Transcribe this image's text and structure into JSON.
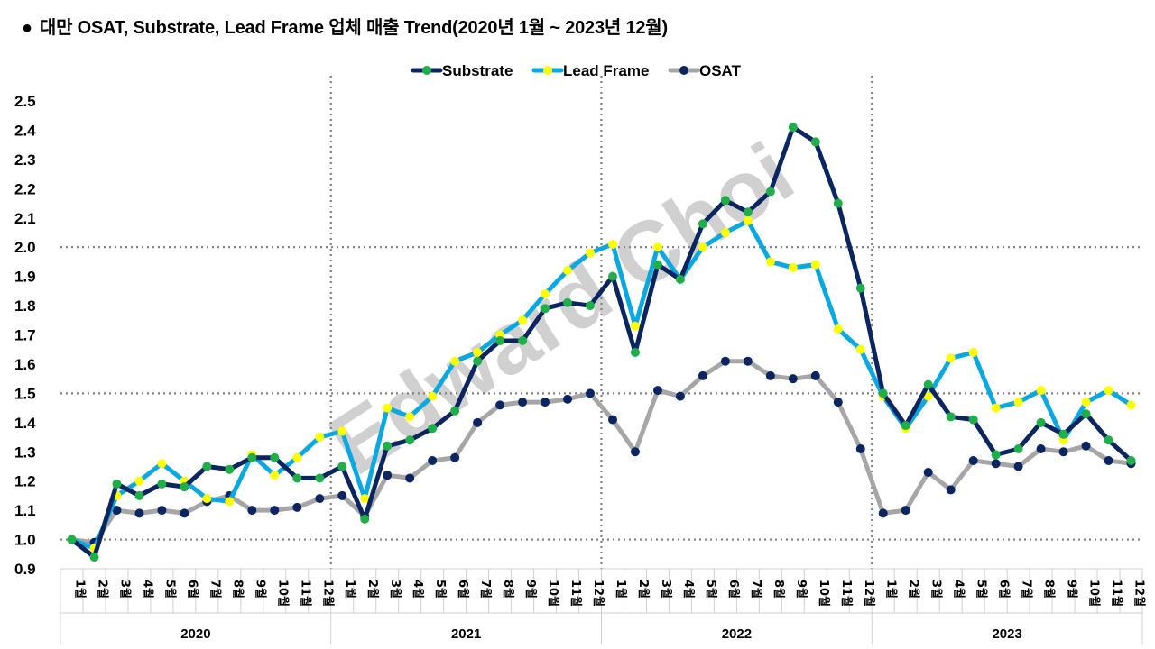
{
  "title": "대만 OSAT, Substrate, Lead Frame 업체 매출 Trend(2020년 1월 ~ 2023년 12월)",
  "title_bullet": "●",
  "watermark": "Edward Choi",
  "colors": {
    "substrate_line": "#0b2560",
    "substrate_marker": "#1fae4a",
    "leadframe_line": "#0aa8e0",
    "leadframe_marker": "#ffff00",
    "osat_line": "#a6a6a6",
    "osat_marker": "#0b2560",
    "grid_dotted": "#808080",
    "watermark": "#c8c8c8"
  },
  "chart_data": {
    "type": "line",
    "title": "대만 OSAT, Substrate, Lead Frame 업체 매출 Trend(2020년 1월 ~ 2023년 12월)",
    "xlabel": "",
    "ylabel": "",
    "ylim": [
      0.9,
      2.5
    ],
    "yticks": [
      "2.5",
      "2.4",
      "2.3",
      "2.2",
      "2.1",
      "2.0",
      "1.9",
      "1.8",
      "1.7",
      "1.6",
      "1.5",
      "1.4",
      "1.3",
      "1.2",
      "1.1",
      "1.0",
      "0.9"
    ],
    "dotted_gridlines_y": [
      1.0,
      1.5,
      2.0
    ],
    "legend_position": "top-center",
    "groups": [
      "2020",
      "2021",
      "2022",
      "2023"
    ],
    "months": [
      "1월",
      "2월",
      "3월",
      "4월",
      "5월",
      "6월",
      "7월",
      "8월",
      "9월",
      "10월",
      "11월",
      "12월"
    ],
    "series": [
      {
        "name": "Substrate",
        "values": [
          1.0,
          0.94,
          1.19,
          1.15,
          1.19,
          1.18,
          1.25,
          1.24,
          1.28,
          1.28,
          1.21,
          1.21,
          1.25,
          1.07,
          1.32,
          1.34,
          1.38,
          1.44,
          1.61,
          1.68,
          1.68,
          1.79,
          1.81,
          1.8,
          1.9,
          1.64,
          1.94,
          1.89,
          2.08,
          2.16,
          2.12,
          2.19,
          2.41,
          2.36,
          2.15,
          1.86,
          1.5,
          1.39,
          1.53,
          1.42,
          1.41,
          1.29,
          1.31,
          1.4,
          1.36,
          1.43,
          1.34,
          1.27
        ]
      },
      {
        "name": "Lead Frame",
        "values": [
          1.0,
          0.97,
          1.15,
          1.2,
          1.26,
          1.2,
          1.14,
          1.13,
          1.29,
          1.22,
          1.28,
          1.35,
          1.37,
          1.14,
          1.45,
          1.42,
          1.49,
          1.61,
          1.64,
          1.7,
          1.75,
          1.84,
          1.92,
          1.98,
          2.01,
          1.73,
          2.0,
          1.89,
          2.0,
          2.05,
          2.09,
          1.95,
          1.93,
          1.94,
          1.72,
          1.65,
          1.49,
          1.38,
          1.49,
          1.62,
          1.64,
          1.45,
          1.47,
          1.51,
          1.34,
          1.47,
          1.51,
          1.46
        ]
      },
      {
        "name": "OSAT",
        "values": [
          1.0,
          0.99,
          1.1,
          1.09,
          1.1,
          1.09,
          1.13,
          1.15,
          1.1,
          1.1,
          1.11,
          1.14,
          1.15,
          1.08,
          1.22,
          1.21,
          1.27,
          1.28,
          1.4,
          1.46,
          1.47,
          1.47,
          1.48,
          1.5,
          1.41,
          1.3,
          1.51,
          1.49,
          1.56,
          1.61,
          1.61,
          1.56,
          1.55,
          1.56,
          1.47,
          1.31,
          1.09,
          1.1,
          1.23,
          1.17,
          1.27,
          1.26,
          1.25,
          1.31,
          1.3,
          1.32,
          1.27,
          1.26
        ]
      }
    ]
  }
}
